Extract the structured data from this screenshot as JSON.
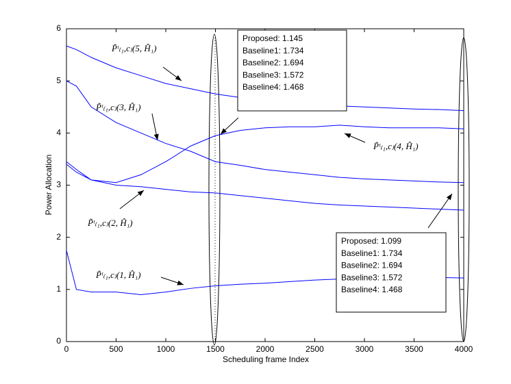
{
  "chart_data": {
    "type": "line",
    "xlabel": "Scheduling frame Index",
    "ylabel": "Power Allocation",
    "x": [
      0,
      100,
      250,
      500,
      750,
      1000,
      1250,
      1500,
      1750,
      2000,
      2250,
      2500,
      2750,
      3000,
      3250,
      3500,
      3750,
      4000
    ],
    "series": [
      {
        "name": "P̃ᵗ₍₁,c₎(5, Ĥ₁)",
        "color": "#0000ff",
        "values": [
          5.67,
          5.6,
          5.45,
          5.25,
          5.1,
          4.95,
          4.85,
          4.75,
          4.68,
          4.62,
          4.58,
          4.55,
          4.52,
          4.5,
          4.48,
          4.46,
          4.45,
          4.43
        ]
      },
      {
        "name": "P̃ᵗ₍₁,c₎(3, Ĥ₁)",
        "color": "#0000ff",
        "values": [
          5.0,
          4.9,
          4.5,
          4.2,
          4.0,
          3.8,
          3.65,
          3.45,
          3.38,
          3.3,
          3.25,
          3.2,
          3.15,
          3.12,
          3.1,
          3.08,
          3.06,
          3.05
        ]
      },
      {
        "name": "P̃ᵗ₍₁,c₎(4, Ĥ₁)",
        "color": "#0000ff",
        "values": [
          3.45,
          3.3,
          3.1,
          3.05,
          3.2,
          3.45,
          3.75,
          3.95,
          4.05,
          4.1,
          4.12,
          4.12,
          4.15,
          4.12,
          4.1,
          4.1,
          4.1,
          4.08
        ]
      },
      {
        "name": "P̃ᵗ₍₁,c₎(2, Ĥ₁)",
        "color": "#0000ff",
        "values": [
          3.4,
          3.25,
          3.1,
          3.0,
          2.97,
          2.92,
          2.87,
          2.85,
          2.8,
          2.75,
          2.7,
          2.65,
          2.62,
          2.6,
          2.58,
          2.56,
          2.54,
          2.52
        ]
      },
      {
        "name": "P̃ᵗ₍₁,c₎(1, Ĥ₁)",
        "color": "#0000ff",
        "values": [
          1.75,
          1.0,
          0.95,
          0.95,
          0.9,
          0.95,
          1.02,
          1.07,
          1.1,
          1.12,
          1.15,
          1.18,
          1.2,
          1.2,
          1.22,
          1.22,
          1.23,
          1.22
        ]
      }
    ],
    "annotations": [
      {
        "lines": [
          "Proposed: 1.145",
          "Baseline1: 1.734",
          "Baseline2: 1.694",
          "Baseline3: 1.572",
          "Baseline4: 1.468"
        ]
      },
      {
        "lines": [
          "Proposed: 1.099",
          "Baseline1: 1.734",
          "Baseline2: 1.694",
          "Baseline3: 1.572",
          "Baseline4: 1.468"
        ]
      }
    ],
    "xlim": [
      0,
      4000
    ],
    "xticks": [
      0,
      500,
      1000,
      1500,
      2000,
      2500,
      3000,
      3500,
      4000
    ],
    "ylim": [
      0,
      6
    ],
    "yticks": [
      0,
      1,
      2,
      3,
      4,
      5,
      6
    ],
    "grid": false
  }
}
